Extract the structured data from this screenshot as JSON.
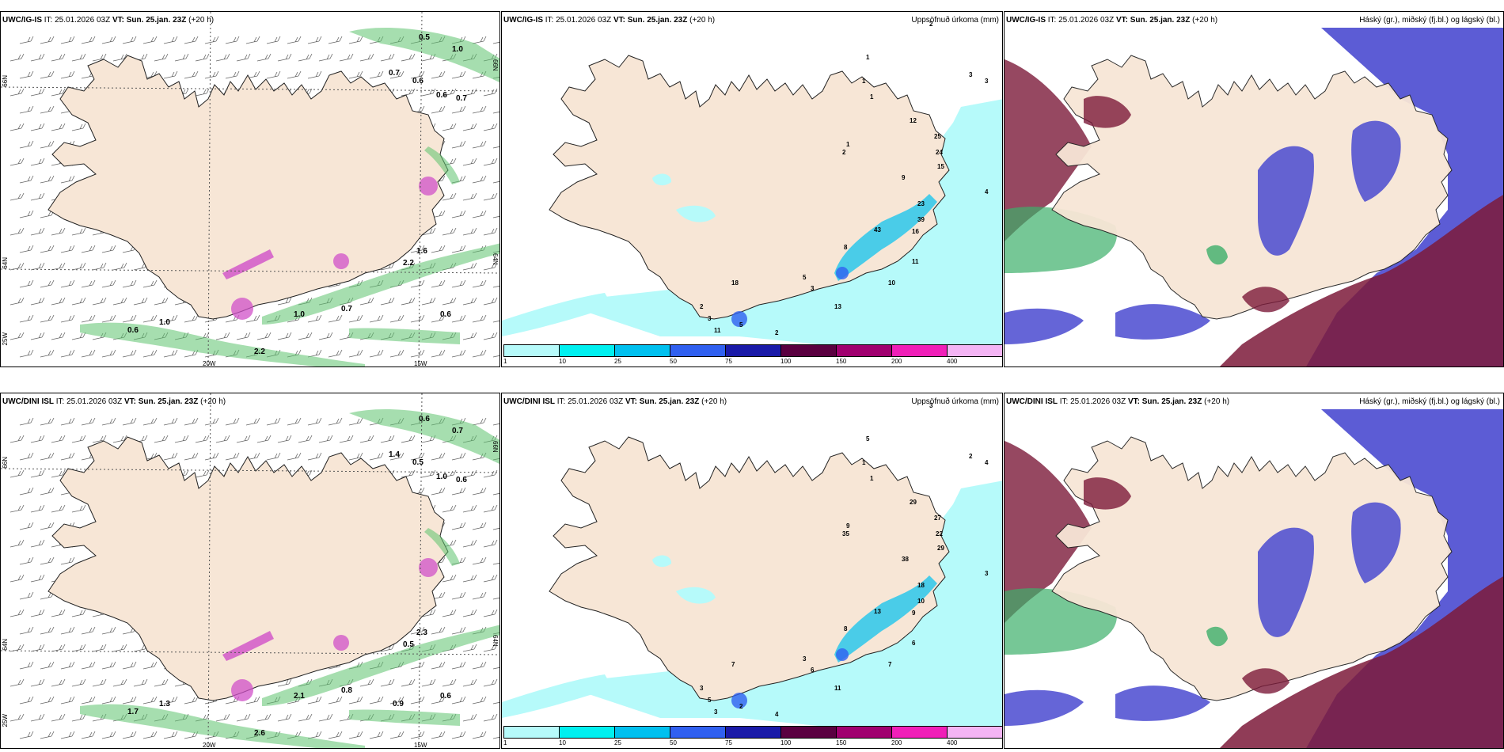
{
  "rows": [
    {
      "model": "UWC/IG-IS",
      "it_label": "IT:",
      "it_value": "25.01.2026 03Z",
      "vt_label": "VT:",
      "vt_value": "Sun. 25.jan. 23Z",
      "lead": "(+20 h)",
      "lats": [
        "66N",
        "64N",
        "25W"
      ],
      "lats_right": [
        "66N",
        "64N"
      ],
      "lons": [
        "20W",
        "15W"
      ],
      "wind_values": [
        "0.5",
        "1.0",
        "0.7",
        "0.6",
        "0.6",
        "0.7",
        "1.6",
        "2.2",
        "1.0",
        "0.7",
        "1.0",
        "0.6",
        "2.2",
        "0.6"
      ],
      "precip_values": [
        "2",
        "1",
        "1",
        "1",
        "3",
        "3",
        "12",
        "25",
        "24",
        "15",
        "1",
        "2",
        "9",
        "23",
        "39",
        "16",
        "43",
        "8",
        "10",
        "11",
        "5",
        "13",
        "3",
        "18",
        "2",
        "3",
        "11",
        "5",
        "2",
        "4"
      ]
    },
    {
      "model": "UWC/DINI ISL",
      "it_label": "IT:",
      "it_value": "25.01.2026 03Z",
      "vt_label": "VT:",
      "vt_value": "Sun. 25.jan. 23Z",
      "lead": "(+20 h)",
      "lats": [
        "66N",
        "64N",
        "25W"
      ],
      "lats_right": [
        "66N",
        "64N"
      ],
      "lons": [
        "20W",
        "15W"
      ],
      "wind_values": [
        "0.6",
        "0.7",
        "1.4",
        "0.5",
        "1.0",
        "0.6",
        "2.3",
        "0.5",
        "2.1",
        "0.8",
        "1.3",
        "1.7",
        "2.6",
        "0.6",
        "0.9"
      ],
      "precip_values": [
        "3",
        "5",
        "1",
        "1",
        "2",
        "4",
        "29",
        "27",
        "22",
        "29",
        "9",
        "35",
        "38",
        "18",
        "10",
        "9",
        "13",
        "8",
        "7",
        "6",
        "3",
        "11",
        "6",
        "7",
        "3",
        "5",
        "3",
        "2",
        "4",
        "3"
      ]
    }
  ],
  "precip_title": "Uppsöfnuð úrkoma (mm)",
  "cloud_title": "Háský (gr.), miðský (fj.bl.) og lágský (bl.)",
  "legend": {
    "values": [
      "1",
      "10",
      "25",
      "50",
      "75",
      "100",
      "150",
      "200",
      "400"
    ],
    "colors": [
      "#b6fafa",
      "#00f0f0",
      "#00c0ef",
      "#3060f0",
      "#1a1aa8",
      "#5a0040",
      "#a0006f",
      "#f01fb8",
      "#f4b4f4"
    ]
  },
  "colors": {
    "land": "#f7e6d6",
    "wind_green": "#5cc36e",
    "precip_cyan": "#b6fafa",
    "cloud_blue": "#4a4ad0",
    "cloud_red": "#7c1a3a",
    "cloud_green": "#3caf6a"
  }
}
